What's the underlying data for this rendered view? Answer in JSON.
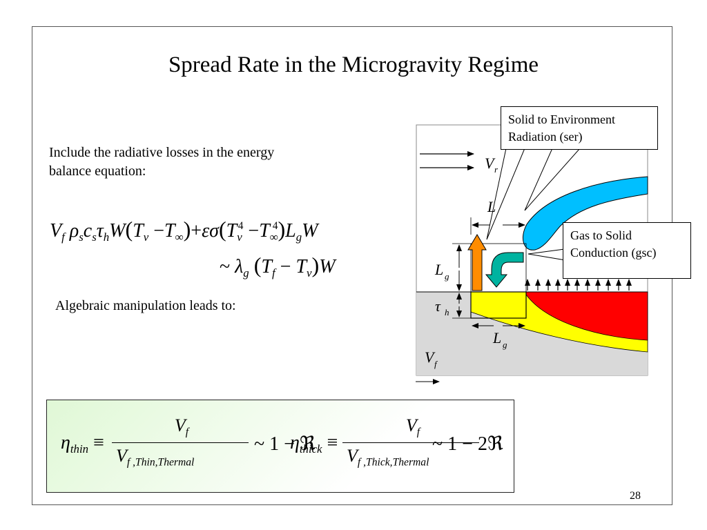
{
  "slide": {
    "title": "Spread Rate in the Microgravity Regime",
    "page_number": "28"
  },
  "text": {
    "intro": "Include the radiative losses in the energy balance equation:",
    "algebra": "Algebraic manipulation leads to:"
  },
  "diagram": {
    "callout_radiation": "Solid to Environment Radiation (ser)",
    "callout_conduction": "Gas to Solid Conduction (gsc)",
    "label_Vr": "V",
    "label_Vr_sub": "r",
    "label_L": "L",
    "label_Lg": "L",
    "label_Lg_sub": "g",
    "label_tau": "τ",
    "label_tau_sub": "h",
    "label_Vf": "V",
    "label_Vf_sub": "f",
    "colors": {
      "flame": "#00bfff",
      "solid_hot": "#ff0000",
      "solid_heated": "#ffff00",
      "solid": "#d9d9d9",
      "radiation_arrow": "#ff8c00",
      "conduction_arrow": "#00b3a0"
    }
  },
  "equations": {
    "eta_thin_sym": "η",
    "eta_thin_sub": "thin",
    "eta_thin_rhs": "~ 1 − ℜ",
    "eta_thin_den_sub": "f ,Thin,Thermal",
    "eta_thick_sym": "η",
    "eta_thick_sub": "thick",
    "eta_thick_rhs": "~ 1 − 2ℜ",
    "eta_thick_den_sub": "f ,Thick,Thermal"
  }
}
